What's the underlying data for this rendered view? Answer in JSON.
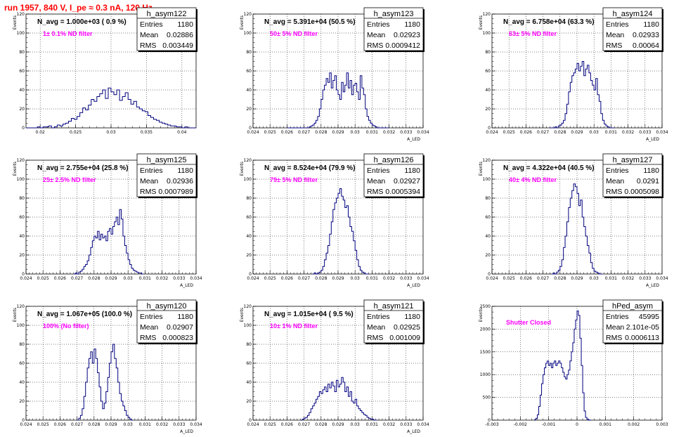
{
  "header": {
    "run_title": "run 1957,   840 V, I_pe ≈ 0.3 nA, 120 Hz"
  },
  "colors": {
    "title": "#ff0000",
    "annotation": "#ff00ff",
    "histogram": "#00007f",
    "grid": "#000000"
  },
  "chart_data": [
    {
      "type": "histogram",
      "name": "h_asym122",
      "stats": {
        "entries": "1180",
        "mean": "0.02886",
        "rms": "0.003449"
      },
      "summary": "N_avg = 1.000e+03 ( 0.9 %)",
      "note": "1± 0.1% ND filter",
      "xlim": [
        0.018,
        0.042
      ],
      "ylim": [
        0,
        120
      ],
      "xticks": [
        "0.02",
        "0.025",
        "0.03",
        "0.035",
        "0.04"
      ],
      "xtick_values": [
        0.02,
        0.025,
        0.03,
        0.035,
        0.04
      ],
      "yticks": [
        "0",
        "20",
        "40",
        "60",
        "80",
        "100",
        "120"
      ],
      "ylabel": "Events",
      "xlabel": "",
      "bin_start": 0.018,
      "bin_width": 0.0004,
      "counts": [
        0,
        0,
        0,
        0,
        1,
        0,
        1,
        1,
        2,
        0,
        1,
        3,
        2,
        4,
        5,
        7,
        10,
        9,
        12,
        16,
        21,
        19,
        24,
        30,
        28,
        33,
        36,
        40,
        31,
        42,
        38,
        35,
        40,
        29,
        33,
        37,
        30,
        25,
        28,
        22,
        20,
        18,
        17,
        13,
        11,
        9,
        8,
        6,
        5,
        4,
        3,
        2,
        2,
        1,
        1,
        0,
        1,
        0,
        0,
        0
      ]
    },
    {
      "type": "histogram",
      "name": "h_asym123",
      "stats": {
        "entries": "1180",
        "mean": "0.02923",
        "rms": "0.0009412"
      },
      "summary": "N_avg = 5.391e+04 (50.5 %)",
      "note": "50± 5% ND filter",
      "xlim": [
        0.024,
        0.034
      ],
      "ylim": [
        0,
        120
      ],
      "xticks": [
        "0.024",
        "0.025",
        "0.026",
        "0.027",
        "0.028",
        "0.029",
        "0.03",
        "0.031",
        "0.032",
        "0.033",
        "0.034"
      ],
      "xtick_values": [
        0.024,
        0.025,
        0.026,
        0.027,
        0.028,
        0.029,
        0.03,
        0.031,
        0.032,
        0.033,
        0.034
      ],
      "yticks": [
        "0",
        "20",
        "40",
        "60",
        "80",
        "100",
        "120"
      ],
      "ylabel": "Events",
      "xlabel": "A_LED",
      "bin_start": 0.026,
      "bin_width": 0.0001,
      "counts": [
        0,
        0,
        0,
        0,
        0,
        0,
        0,
        0,
        0,
        0,
        0,
        0,
        0,
        1,
        2,
        3,
        5,
        8,
        12,
        20,
        30,
        40,
        45,
        52,
        48,
        58,
        42,
        50,
        55,
        40,
        35,
        30,
        48,
        38,
        45,
        58,
        42,
        50,
        35,
        45,
        47,
        38,
        30,
        55,
        42,
        35,
        20,
        12,
        8,
        5,
        3,
        2,
        1,
        0,
        0,
        0,
        0,
        0,
        0,
        0
      ]
    },
    {
      "type": "histogram",
      "name": "h_asym124",
      "stats": {
        "entries": "1180",
        "mean": "0.02933",
        "rms": "0.00064"
      },
      "summary": "N_avg = 6.758e+04 (63.3 %)",
      "note": "63± 5% ND filter",
      "xlim": [
        0.024,
        0.034
      ],
      "ylim": [
        0,
        120
      ],
      "xticks": [
        "0.024",
        "0.025",
        "0.026",
        "0.027",
        "0.028",
        "0.029",
        "0.03",
        "0.031",
        "0.032",
        "0.033",
        "0.034"
      ],
      "xtick_values": [
        0.024,
        0.025,
        0.026,
        0.027,
        0.028,
        0.029,
        0.03,
        0.031,
        0.032,
        0.033,
        0.034
      ],
      "yticks": [
        "0",
        "20",
        "40",
        "60",
        "80",
        "100",
        "120"
      ],
      "ylabel": "Events",
      "xlabel": "A_LED",
      "bin_start": 0.0274,
      "bin_width": 0.0001,
      "counts": [
        0,
        0,
        0,
        1,
        0,
        2,
        3,
        5,
        8,
        15,
        25,
        38,
        48,
        55,
        58,
        62,
        68,
        60,
        65,
        70,
        55,
        62,
        66,
        58,
        50,
        45,
        40,
        52,
        35,
        28,
        15,
        8,
        4,
        2,
        1,
        0,
        0,
        0
      ]
    },
    {
      "type": "histogram",
      "name": "h_asym125",
      "stats": {
        "entries": "1180",
        "mean": "0.02936",
        "rms": "0.0007989"
      },
      "summary": "N_avg = 2.755e+04 (25.8 %)",
      "note": "25± 2.5% ND filter",
      "xlim": [
        0.024,
        0.034
      ],
      "ylim": [
        0,
        120
      ],
      "xticks": [
        "0.024",
        "0.025",
        "0.026",
        "0.027",
        "0.028",
        "0.029",
        "0.03",
        "0.031",
        "0.032",
        "0.033",
        "0.034"
      ],
      "xtick_values": [
        0.024,
        0.025,
        0.026,
        0.027,
        0.028,
        0.029,
        0.03,
        0.031,
        0.032,
        0.033,
        0.034
      ],
      "yticks": [
        "0",
        "20",
        "40",
        "60",
        "80",
        "100",
        "120"
      ],
      "ylabel": "Events",
      "xlabel": "A_LED",
      "bin_start": 0.0268,
      "bin_width": 0.0001,
      "counts": [
        0,
        1,
        0,
        2,
        3,
        5,
        8,
        10,
        14,
        20,
        28,
        35,
        40,
        38,
        45,
        36,
        42,
        38,
        40,
        35,
        45,
        48,
        42,
        50,
        55,
        60,
        52,
        68,
        58,
        40,
        30,
        22,
        15,
        10,
        6,
        4,
        3,
        2,
        1,
        1,
        0
      ]
    },
    {
      "type": "histogram",
      "name": "h_asym126",
      "stats": {
        "entries": "1180",
        "mean": "0.02927",
        "rms": "0.0005394"
      },
      "summary": "N_avg = 8.524e+04 (79.9 %)",
      "note": "79± 5% ND filter",
      "xlim": [
        0.024,
        0.034
      ],
      "ylim": [
        0,
        120
      ],
      "xticks": [
        "0.024",
        "0.025",
        "0.026",
        "0.027",
        "0.028",
        "0.029",
        "0.03",
        "0.031",
        "0.032",
        "0.033",
        "0.034"
      ],
      "xtick_values": [
        0.024,
        0.025,
        0.026,
        0.027,
        0.028,
        0.029,
        0.03,
        0.031,
        0.032,
        0.033,
        0.034
      ],
      "yticks": [
        "0",
        "20",
        "40",
        "60",
        "80",
        "100",
        "120"
      ],
      "ylabel": "Events",
      "xlabel": "A_LED",
      "bin_start": 0.0275,
      "bin_width": 0.0001,
      "counts": [
        0,
        1,
        0,
        1,
        2,
        4,
        8,
        15,
        22,
        30,
        42,
        55,
        68,
        75,
        80,
        85,
        90,
        82,
        78,
        70,
        72,
        60,
        50,
        45,
        35,
        25,
        15,
        8,
        4,
        2,
        1,
        0,
        0
      ]
    },
    {
      "type": "histogram",
      "name": "h_asym127",
      "stats": {
        "entries": "1180",
        "mean": "0.0291",
        "rms": "0.0005098"
      },
      "summary": "N_avg = 4.322e+04 (40.5 %)",
      "note": "40± 4% ND filter",
      "xlim": [
        0.024,
        0.034
      ],
      "ylim": [
        0,
        120
      ],
      "xticks": [
        "0.024",
        "0.025",
        "0.026",
        "0.027",
        "0.028",
        "0.029",
        "0.03",
        "0.031",
        "0.032",
        "0.033",
        "0.034"
      ],
      "xtick_values": [
        0.024,
        0.025,
        0.026,
        0.027,
        0.028,
        0.029,
        0.03,
        0.031,
        0.032,
        0.033,
        0.034
      ],
      "yticks": [
        "0",
        "20",
        "40",
        "60",
        "80",
        "100",
        "120"
      ],
      "ylabel": "Events",
      "xlabel": "A_LED",
      "bin_start": 0.0275,
      "bin_width": 0.0001,
      "counts": [
        0,
        1,
        0,
        2,
        4,
        8,
        15,
        28,
        40,
        55,
        70,
        80,
        88,
        95,
        92,
        85,
        72,
        78,
        60,
        50,
        40,
        30,
        22,
        12,
        6,
        3,
        2,
        1,
        0,
        0
      ]
    },
    {
      "type": "histogram",
      "name": "h_asym120",
      "stats": {
        "entries": "1180",
        "mean": "0.02907",
        "rms": "0.000823"
      },
      "summary": "N_avg = 1.067e+05 (100.0 %)",
      "note": "100% (No filter)",
      "xlim": [
        0.024,
        0.034
      ],
      "ylim": [
        0,
        120
      ],
      "xticks": [
        "0.024",
        "0.025",
        "0.026",
        "0.027",
        "0.028",
        "0.029",
        "0.03",
        "0.031",
        "0.032",
        "0.033",
        "0.034"
      ],
      "xtick_values": [
        0.024,
        0.025,
        0.026,
        0.027,
        0.028,
        0.029,
        0.03,
        0.031,
        0.032,
        0.033,
        0.034
      ],
      "yticks": [
        "0",
        "20",
        "40",
        "60",
        "80",
        "100",
        "120"
      ],
      "ylabel": "Events",
      "xlabel": "A_LED",
      "bin_start": 0.027,
      "bin_width": 0.0001,
      "counts": [
        0,
        2,
        5,
        12,
        25,
        40,
        55,
        65,
        72,
        60,
        75,
        65,
        50,
        35,
        20,
        12,
        18,
        30,
        45,
        60,
        72,
        80,
        65,
        55,
        40,
        28,
        20,
        15,
        10,
        5,
        3,
        1,
        0
      ]
    },
    {
      "type": "histogram",
      "name": "h_asym121",
      "stats": {
        "entries": "1180",
        "mean": "0.02925",
        "rms": "0.001009"
      },
      "summary": "N_avg = 1.015e+04 ( 9.5 %)",
      "note": "10± 1% ND filter",
      "xlim": [
        0.024,
        0.034
      ],
      "ylim": [
        0,
        120
      ],
      "xticks": [
        "0.024",
        "0.025",
        "0.026",
        "0.027",
        "0.028",
        "0.029",
        "0.03",
        "0.031",
        "0.032",
        "0.033",
        "0.034"
      ],
      "xtick_values": [
        0.024,
        0.025,
        0.026,
        0.027,
        0.028,
        0.029,
        0.03,
        0.031,
        0.032,
        0.033,
        0.034
      ],
      "yticks": [
        "0",
        "20",
        "40",
        "60",
        "80",
        "100",
        "120"
      ],
      "ylabel": "Events",
      "xlabel": "A_LED",
      "bin_start": 0.0268,
      "bin_width": 0.0001,
      "counts": [
        0,
        1,
        2,
        3,
        5,
        8,
        12,
        15,
        18,
        22,
        25,
        30,
        28,
        32,
        35,
        30,
        38,
        34,
        40,
        36,
        30,
        42,
        35,
        38,
        45,
        40,
        30,
        35,
        25,
        30,
        20,
        18,
        22,
        15,
        12,
        10,
        8,
        6,
        5,
        3,
        2,
        1,
        1,
        0,
        0
      ]
    },
    {
      "type": "histogram",
      "name": "hPed_asym",
      "stats": {
        "entries": "45995",
        "mean": "2.101e-05",
        "rms": "0.0006113"
      },
      "summary": "",
      "note": "Shutter Closed",
      "xlim": [
        -0.003,
        0.003
      ],
      "ylim": [
        0,
        2500
      ],
      "xticks": [
        "-0.003",
        "-0.002",
        "-0.001",
        "0",
        "0.001",
        "0.002",
        "0.003"
      ],
      "xtick_values": [
        -0.003,
        -0.002,
        -0.001,
        0,
        0.001,
        0.002,
        0.003
      ],
      "yticks": [
        "0",
        "500",
        "1000",
        "1500",
        "2000",
        "2500"
      ],
      "ylabel": "Events",
      "xlabel": "",
      "bin_start": -0.0015,
      "bin_width": 5e-05,
      "counts": [
        10,
        40,
        120,
        300,
        550,
        800,
        1000,
        1150,
        1250,
        1300,
        1200,
        1250,
        1150,
        1250,
        1300,
        1200,
        1250,
        1300,
        1250,
        1150,
        1050,
        950,
        900,
        1000,
        1100,
        1300,
        1500,
        1700,
        2000,
        2200,
        2400,
        2300,
        1800,
        1200,
        600,
        200,
        60,
        20,
        5,
        0
      ]
    }
  ]
}
